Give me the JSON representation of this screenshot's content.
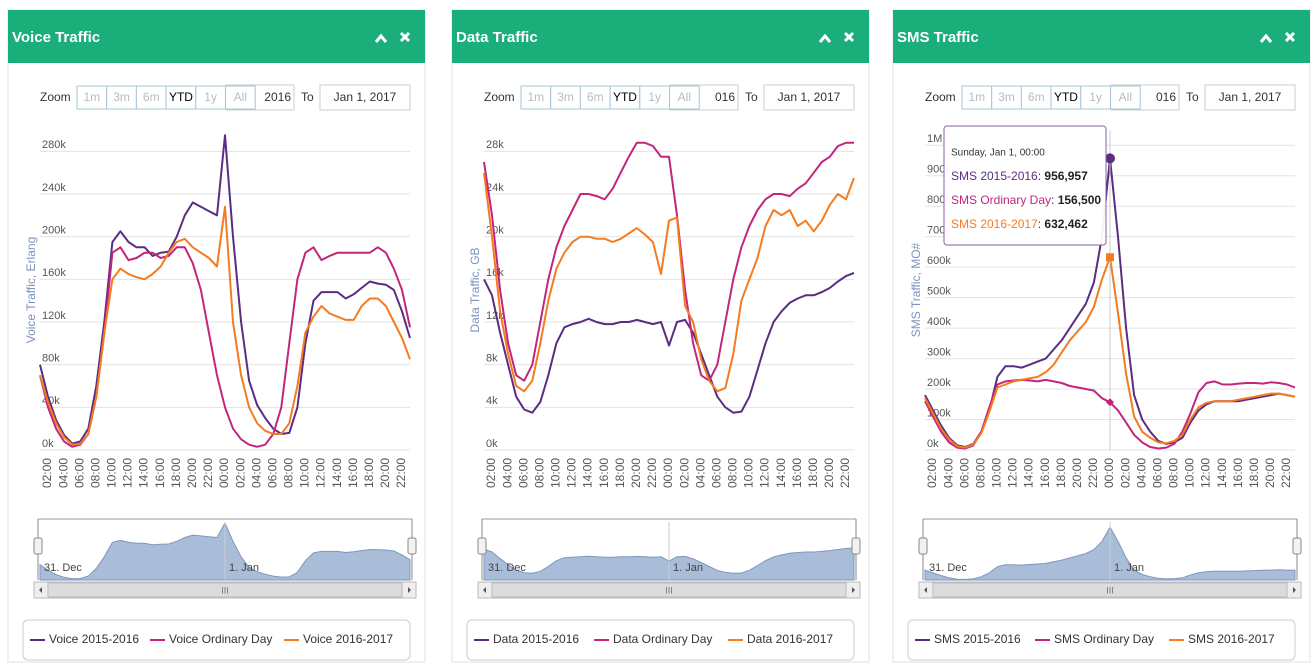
{
  "chart_data": [
    {
      "type": "line",
      "title": "Voice Traffic",
      "zoom_label": "Zoom",
      "zoom_buttons": [
        "1m",
        "3m",
        "6m",
        "YTD",
        "1y",
        "All"
      ],
      "zoom_selected": 3,
      "from_date": "2016",
      "to_label": "To",
      "to_date": "Jan 1, 2017",
      "y_axis_label": "Voice Traffic, Erlang",
      "categories": [
        null,
        "02:00",
        null,
        "04:00",
        null,
        "06:00",
        null,
        "08:00",
        null,
        "10:00",
        null,
        "12:00",
        null,
        "14:00",
        null,
        "16:00",
        null,
        "18:00",
        null,
        "20:00",
        null,
        "22:00",
        null,
        "00:00",
        null,
        "02:00",
        null,
        "04:00",
        null,
        "06:00",
        null,
        "08:00",
        null,
        "10:00",
        null,
        "12:00",
        null,
        "14:00",
        null,
        "16:00",
        null,
        "18:00",
        null,
        "20:00",
        null,
        "22:00",
        null
      ],
      "ylim": [
        0,
        300000
      ],
      "yticks": [
        {
          "value": 0,
          "label": "0k"
        },
        {
          "value": 40000,
          "label": "40k"
        },
        {
          "value": 80000,
          "label": "80k"
        },
        {
          "value": 120000,
          "label": "120k"
        },
        {
          "value": 160000,
          "label": "160k"
        },
        {
          "value": 200000,
          "label": "200k"
        },
        {
          "value": 240000,
          "label": "240k"
        },
        {
          "value": 280000,
          "label": "280k"
        }
      ],
      "grid": true,
      "series": [
        {
          "name": "Voice 2015-2016",
          "color": "#5a2d82",
          "values": [
            80000,
            50000,
            28000,
            14000,
            6000,
            8000,
            20000,
            60000,
            120000,
            195000,
            205000,
            195000,
            190000,
            190000,
            182000,
            185000,
            186000,
            200000,
            220000,
            232000,
            228000,
            224000,
            220000,
            295000,
            200000,
            120000,
            65000,
            42000,
            30000,
            20000,
            15000,
            16000,
            40000,
            100000,
            140000,
            148000,
            148000,
            148000,
            142000,
            146000,
            152000,
            158000,
            156000,
            155000,
            150000,
            130000,
            105000
          ]
        },
        {
          "name": "Voice Ordinary Day",
          "color": "#c2267c",
          "values": [
            70000,
            40000,
            20000,
            8000,
            3000,
            5000,
            15000,
            50000,
            110000,
            185000,
            190000,
            178000,
            180000,
            185000,
            185000,
            180000,
            182000,
            190000,
            190000,
            175000,
            150000,
            110000,
            70000,
            40000,
            20000,
            10000,
            5000,
            3000,
            5000,
            15000,
            40000,
            100000,
            160000,
            185000,
            190000,
            178000,
            182000,
            185000,
            185000,
            185000,
            185000,
            185000,
            190000,
            185000,
            170000,
            150000,
            115000
          ]
        },
        {
          "name": "Voice 2016-2017",
          "color": "#f47b20",
          "values": [
            70000,
            45000,
            25000,
            12000,
            5000,
            6000,
            15000,
            50000,
            110000,
            160000,
            170000,
            165000,
            162000,
            160000,
            165000,
            172000,
            185000,
            195000,
            198000,
            190000,
            185000,
            180000,
            172000,
            228000,
            120000,
            70000,
            40000,
            25000,
            18000,
            15000,
            15000,
            25000,
            60000,
            110000,
            125000,
            135000,
            128000,
            125000,
            122000,
            122000,
            135000,
            142000,
            142000,
            135000,
            120000,
            105000,
            85000
          ]
        }
      ],
      "navigator_labels": [
        "31. Dec",
        "1. Jan"
      ],
      "scrollbar_label": "III"
    },
    {
      "type": "line",
      "title": "Data Traffic",
      "zoom_label": "Zoom",
      "zoom_buttons": [
        "1m",
        "3m",
        "6m",
        "YTD",
        "1y",
        "All"
      ],
      "zoom_selected": 3,
      "from_date": "016",
      "to_label": "To",
      "to_date": "Jan 1, 2017",
      "y_axis_label": "Data Traffic, GB",
      "categories": [
        null,
        "02:00",
        null,
        "04:00",
        null,
        "06:00",
        null,
        "08:00",
        null,
        "10:00",
        null,
        "12:00",
        null,
        "14:00",
        null,
        "16:00",
        null,
        "18:00",
        null,
        "20:00",
        null,
        "22:00",
        null,
        "00:00",
        null,
        "02:00",
        null,
        "04:00",
        null,
        "06:00",
        null,
        "08:00",
        null,
        "10:00",
        null,
        "12:00",
        null,
        "14:00",
        null,
        "16:00",
        null,
        "18:00",
        null,
        "20:00",
        null,
        "22:00",
        null
      ],
      "ylim": [
        0,
        30000
      ],
      "yticks": [
        {
          "value": 0,
          "label": "0k"
        },
        {
          "value": 4000,
          "label": "4k"
        },
        {
          "value": 8000,
          "label": "8k"
        },
        {
          "value": 12000,
          "label": "12k"
        },
        {
          "value": 16000,
          "label": "16k"
        },
        {
          "value": 20000,
          "label": "20k"
        },
        {
          "value": 24000,
          "label": "24k"
        },
        {
          "value": 28000,
          "label": "28k"
        }
      ],
      "grid": true,
      "series": [
        {
          "name": "Data 2015-2016",
          "color": "#5a2d82",
          "values": [
            16000,
            14500,
            11000,
            8000,
            5000,
            3800,
            3500,
            4500,
            7000,
            10000,
            11500,
            11800,
            12000,
            12300,
            12000,
            11800,
            11800,
            12000,
            12000,
            12200,
            12000,
            11800,
            12000,
            9800,
            12000,
            12200,
            11000,
            9000,
            7000,
            5000,
            4000,
            3500,
            3600,
            5000,
            7500,
            10000,
            12000,
            13000,
            13800,
            14200,
            14500,
            14500,
            14800,
            15200,
            15800,
            16300,
            16600
          ]
        },
        {
          "name": "Data Ordinary Day",
          "color": "#c2267c",
          "values": [
            27000,
            22000,
            15000,
            10000,
            7000,
            6500,
            8000,
            12000,
            16000,
            19000,
            21000,
            22500,
            24000,
            24000,
            23800,
            23500,
            24500,
            26000,
            27500,
            28800,
            28800,
            28500,
            27500,
            27500,
            22000,
            15000,
            10000,
            7000,
            6500,
            8000,
            12000,
            16000,
            19000,
            21000,
            22500,
            23500,
            24000,
            24000,
            23800,
            24500,
            25000,
            26000,
            27000,
            27500,
            28500,
            28800,
            28800
          ]
        },
        {
          "name": "Data 2016-2017",
          "color": "#f47b20",
          "values": [
            26000,
            20000,
            13000,
            9000,
            6000,
            5500,
            6500,
            10000,
            14000,
            17000,
            18500,
            19500,
            20000,
            20000,
            19800,
            19800,
            19500,
            19800,
            20300,
            20800,
            20200,
            19500,
            16500,
            21500,
            21800,
            13500,
            12000,
            8500,
            6500,
            5500,
            5800,
            9000,
            14000,
            16000,
            18000,
            21000,
            22500,
            22000,
            22500,
            21000,
            21500,
            20500,
            21500,
            23000,
            24000,
            23500,
            25500
          ]
        }
      ],
      "navigator_labels": [
        "31. Dec",
        "1. Jan"
      ],
      "scrollbar_label": "III"
    },
    {
      "type": "line",
      "title": "SMS Traffic",
      "zoom_label": "Zoom",
      "zoom_buttons": [
        "1m",
        "3m",
        "6m",
        "YTD",
        "1y",
        "All"
      ],
      "zoom_selected": 3,
      "from_date": "016",
      "to_label": "To",
      "to_date": "Jan 1, 2017",
      "y_axis_label": "SMS Traffic, MO#",
      "categories": [
        null,
        "02:00",
        null,
        "04:00",
        null,
        "06:00",
        null,
        "08:00",
        null,
        "10:00",
        null,
        "12:00",
        null,
        "14:00",
        null,
        "16:00",
        null,
        "18:00",
        null,
        "20:00",
        null,
        "22:00",
        null,
        "00:00",
        null,
        "02:00",
        null,
        "04:00",
        null,
        "06:00",
        null,
        "08:00",
        null,
        "10:00",
        null,
        "12:00",
        null,
        "14:00",
        null,
        "16:00",
        null,
        "18:00",
        null,
        "20:00",
        null,
        "22:00",
        null
      ],
      "ylim": [
        0,
        1050000
      ],
      "yticks": [
        {
          "value": 0,
          "label": "0k"
        },
        {
          "value": 100000,
          "label": "100k"
        },
        {
          "value": 200000,
          "label": "200k"
        },
        {
          "value": 300000,
          "label": "300k"
        },
        {
          "value": 400000,
          "label": "400k"
        },
        {
          "value": 500000,
          "label": "500k"
        },
        {
          "value": 600000,
          "label": "600k"
        },
        {
          "value": 700000,
          "label": "700k"
        },
        {
          "value": 800000,
          "label": "800k"
        },
        {
          "value": 900000,
          "label": "900k"
        },
        {
          "value": 1000000,
          "label": "1M"
        }
      ],
      "grid": true,
      "series": [
        {
          "name": "SMS 2015-2016",
          "color": "#5a2d82",
          "values": [
            180000,
            130000,
            80000,
            40000,
            15000,
            10000,
            20000,
            60000,
            130000,
            240000,
            275000,
            275000,
            270000,
            280000,
            290000,
            300000,
            330000,
            360000,
            400000,
            440000,
            480000,
            550000,
            700000,
            956957,
            700000,
            400000,
            180000,
            100000,
            60000,
            30000,
            20000,
            25000,
            40000,
            90000,
            130000,
            150000,
            160000,
            160000,
            160000,
            160000,
            165000,
            170000,
            175000,
            180000,
            185000,
            180000,
            175000
          ]
        },
        {
          "name": "SMS Ordinary Day",
          "color": "#c2267c",
          "values": [
            160000,
            110000,
            60000,
            25000,
            8000,
            5000,
            15000,
            60000,
            140000,
            215000,
            225000,
            228000,
            230000,
            228000,
            225000,
            230000,
            225000,
            220000,
            210000,
            205000,
            200000,
            195000,
            170000,
            156500,
            130000,
            90000,
            50000,
            25000,
            10000,
            5000,
            8000,
            20000,
            60000,
            120000,
            190000,
            220000,
            225000,
            215000,
            215000,
            218000,
            220000,
            220000,
            218000,
            222000,
            220000,
            215000,
            205000
          ]
        },
        {
          "name": "SMS 2016-2017",
          "color": "#f47b20",
          "values": [
            170000,
            120000,
            70000,
            35000,
            12000,
            8000,
            18000,
            55000,
            125000,
            205000,
            215000,
            225000,
            230000,
            235000,
            240000,
            255000,
            280000,
            320000,
            360000,
            390000,
            420000,
            470000,
            560000,
            632462,
            450000,
            250000,
            110000,
            60000,
            40000,
            25000,
            22000,
            30000,
            50000,
            100000,
            140000,
            155000,
            160000,
            160000,
            160000,
            165000,
            170000,
            175000,
            180000,
            185000,
            185000,
            180000,
            175000
          ]
        }
      ],
      "tooltip": {
        "header": "Sunday, Jan 1, 00:00",
        "index": 23,
        "separator": ": ",
        "value_labels": [
          "956,957",
          "156,500",
          "632,462"
        ]
      },
      "navigator_labels": [
        "31. Dec",
        "1. Jan"
      ],
      "scrollbar_label": "III"
    }
  ]
}
